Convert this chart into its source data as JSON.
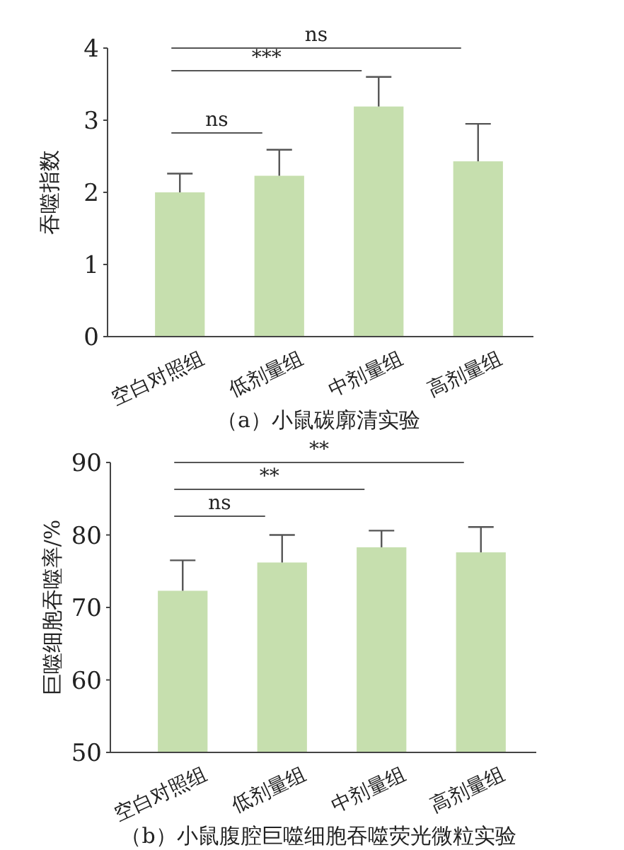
{
  "chart_data": [
    {
      "type": "bar",
      "title": "（a）小鼠碳廓清实验",
      "ylabel": "吞噬指数",
      "categories": [
        "空白对照组",
        "低剂量组",
        "中剂量组",
        "高剂量组"
      ],
      "values": [
        2.0,
        2.23,
        3.19,
        2.43
      ],
      "errors": [
        [
          2.0,
          2.26
        ],
        [
          2.23,
          2.59
        ],
        [
          3.19,
          3.6
        ],
        [
          2.43,
          2.95
        ]
      ],
      "color": "#c6dfae",
      "ylim": [
        0,
        4
      ],
      "yticks": [
        0,
        1,
        2,
        3,
        4
      ],
      "grid": false,
      "annotations": [
        "ns",
        "***",
        "ns"
      ]
    },
    {
      "type": "bar",
      "title": "（b）小鼠腹腔巨噬细胞吞噬荧光微粒实验",
      "ylabel": "巨噬细胞吞噬率/%",
      "categories": [
        "空白对照组",
        "低剂量组",
        "中剂量组",
        "高剂量组"
      ],
      "values": [
        72.3,
        76.2,
        78.3,
        77.6
      ],
      "errors": [
        [
          72.3,
          76.5
        ],
        [
          76.2,
          80.0
        ],
        [
          78.3,
          80.6
        ],
        [
          77.6,
          81.1
        ]
      ],
      "color": "#c6dfae",
      "ylim": [
        50,
        90
      ],
      "yticks": [
        50,
        60,
        70,
        80,
        90
      ],
      "grid": false,
      "annotations": [
        "ns",
        "**",
        "**"
      ]
    }
  ]
}
